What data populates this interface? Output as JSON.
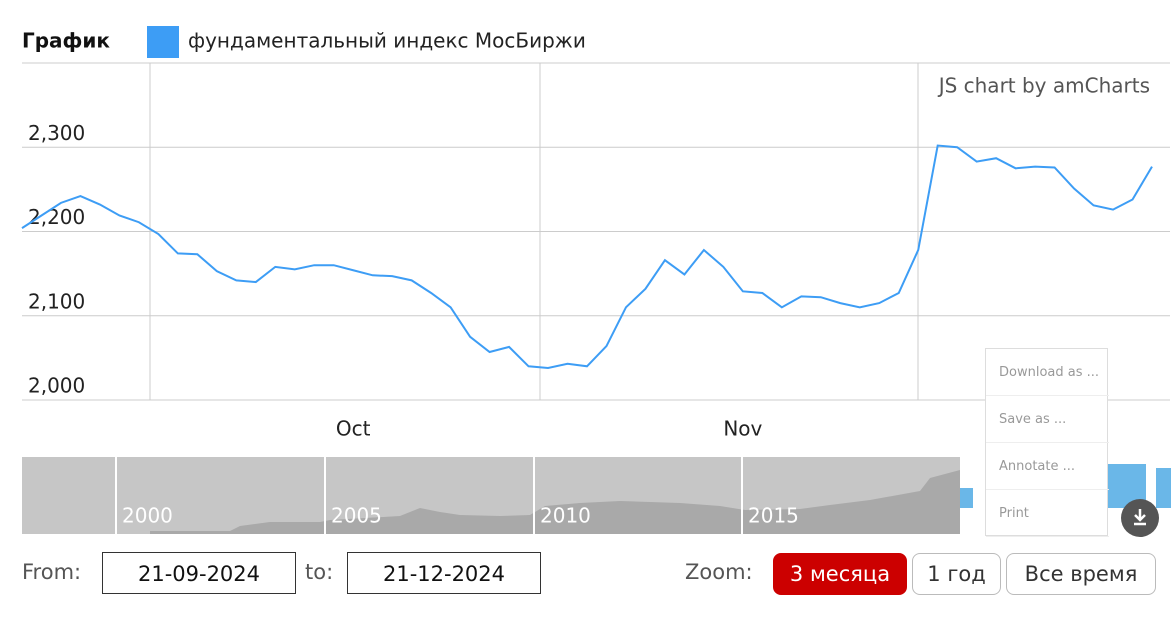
{
  "chart_data": {
    "type": "line",
    "title": "График",
    "credit": "JS chart by amCharts",
    "categories": [
      null,
      null,
      null,
      null,
      null,
      null,
      null,
      null,
      null,
      null,
      null,
      null,
      null,
      null,
      null,
      null,
      null,
      "Oct",
      null,
      null,
      null,
      null,
      null,
      null,
      null,
      null,
      null,
      null,
      null,
      null,
      null,
      null,
      null,
      null,
      null,
      null,
      null,
      "Nov",
      null,
      null,
      null,
      null,
      null,
      null,
      null,
      null,
      null,
      null,
      null,
      null,
      null,
      null,
      null,
      null,
      null,
      null,
      null,
      null,
      null
    ],
    "series": [
      {
        "name": "фундаментальный индекс МосБиржи",
        "color": "#3d9df5",
        "values": [
          2204,
          2219,
          2234,
          2242,
          2232,
          2219,
          2211,
          2197,
          2174,
          2173,
          2153,
          2142,
          2140,
          2158,
          2155,
          2160,
          2160,
          2154,
          2148,
          2147,
          2142,
          2127,
          2110,
          2075,
          2057,
          2063,
          2040,
          2038,
          2043,
          2040,
          2064,
          2110,
          2132,
          2166,
          2149,
          2178,
          2158,
          2129,
          2127,
          2110,
          2123,
          2122,
          2115,
          2110,
          2115,
          2127,
          2178,
          2302,
          2300,
          2283,
          2287,
          2275,
          2277,
          2276,
          2251,
          2231,
          2226,
          2238,
          2277
        ]
      }
    ],
    "ylim": [
      2000,
      2400
    ],
    "yticks": [
      {
        "value": 2000,
        "label": "2,000"
      },
      {
        "value": 2100,
        "label": "2,100"
      },
      {
        "value": 2200,
        "label": "2,200"
      },
      {
        "value": 2300,
        "label": "2,300"
      }
    ],
    "grid": true
  },
  "scrollbar": {
    "labels": [
      "2000",
      "2005",
      "2010",
      "2015"
    ]
  },
  "menu": {
    "items": [
      "Download as ...",
      "Save as ...",
      "Annotate ...",
      "Print"
    ]
  },
  "controls": {
    "from_label": "From:",
    "from": "21-09-2024",
    "to_label": "to:",
    "to": "21-12-2024",
    "zoom_label": "Zoom:",
    "buttons": [
      "3 месяца",
      "1 год",
      "Все время"
    ]
  }
}
